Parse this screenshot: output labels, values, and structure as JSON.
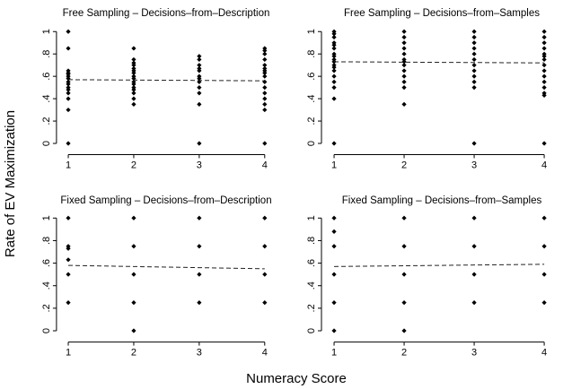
{
  "axis_labels": {
    "y": "Rate of EV Maximization",
    "x": "Numeracy Score"
  },
  "chart_data": [
    {
      "type": "scatter",
      "title": "Free Sampling – Decisions–from–Description",
      "color": "#000000",
      "x": [
        1,
        1,
        1,
        1,
        1,
        1,
        1,
        1,
        1,
        1,
        1,
        1,
        1,
        1,
        1,
        2,
        2,
        2,
        2,
        2,
        2,
        2,
        2,
        2,
        2,
        2,
        2,
        2,
        2,
        2,
        2,
        3,
        3,
        3,
        3,
        3,
        3,
        3,
        3,
        3,
        3,
        3,
        3,
        4,
        4,
        4,
        4,
        4,
        4,
        4,
        4,
        4,
        4,
        4,
        4,
        4,
        4,
        4,
        4
      ],
      "values": [
        1,
        0.85,
        0.65,
        0.63,
        0.62,
        0.6,
        0.58,
        0.55,
        0.53,
        0.5,
        0.48,
        0.45,
        0.4,
        0.3,
        0,
        0.85,
        0.75,
        0.72,
        0.7,
        0.67,
        0.65,
        0.63,
        0.6,
        0.58,
        0.55,
        0.53,
        0.5,
        0.48,
        0.45,
        0.4,
        0.35,
        0.78,
        0.75,
        0.7,
        0.67,
        0.65,
        0.6,
        0.58,
        0.55,
        0.5,
        0.45,
        0.35,
        0,
        0.85,
        0.83,
        0.8,
        0.75,
        0.7,
        0.67,
        0.65,
        0.63,
        0.6,
        0.55,
        0.5,
        0.45,
        0.4,
        0.35,
        0.3,
        0
      ],
      "fit": {
        "x": [
          1,
          4
        ],
        "values": [
          0.57,
          0.56
        ]
      },
      "xlim": [
        0.82,
        4.14
      ],
      "ylim": [
        -0.1,
        1.05
      ],
      "xticks": [
        1,
        2,
        3,
        4
      ],
      "yticks": [
        0,
        {
          "value": 0.2,
          "label": ".2"
        },
        {
          "value": 0.4,
          "label": ".4"
        },
        {
          "value": 0.6,
          "label": ".6"
        },
        {
          "value": 0.8,
          "label": ".8"
        },
        1
      ]
    },
    {
      "type": "scatter",
      "title": "Free Sampling – Decisions–from–Samples",
      "color": "#000000",
      "x": [
        1,
        1,
        1,
        1,
        1,
        1,
        1,
        1,
        1,
        1,
        1,
        1,
        1,
        1,
        1,
        1,
        1,
        1,
        2,
        2,
        2,
        2,
        2,
        2,
        2,
        2,
        2,
        2,
        2,
        2,
        2,
        3,
        3,
        3,
        3,
        3,
        3,
        3,
        3,
        3,
        3,
        3,
        3,
        4,
        4,
        4,
        4,
        4,
        4,
        4,
        4,
        4,
        4,
        4,
        4,
        4,
        4,
        4
      ],
      "values": [
        1,
        0.98,
        0.95,
        0.9,
        0.88,
        0.85,
        0.8,
        0.78,
        0.75,
        0.73,
        0.7,
        0.68,
        0.65,
        0.6,
        0.55,
        0.5,
        0.4,
        0,
        1,
        0.95,
        0.9,
        0.85,
        0.8,
        0.75,
        0.73,
        0.7,
        0.65,
        0.6,
        0.55,
        0.5,
        0.35,
        1,
        0.95,
        0.9,
        0.85,
        0.8,
        0.75,
        0.7,
        0.65,
        0.6,
        0.55,
        0.5,
        0,
        1,
        0.95,
        0.9,
        0.85,
        0.8,
        0.78,
        0.75,
        0.7,
        0.65,
        0.6,
        0.55,
        0.5,
        0.45,
        0.43,
        0
      ],
      "fit": {
        "x": [
          1,
          4
        ],
        "values": [
          0.73,
          0.72
        ]
      },
      "xlim": [
        0.82,
        4.14
      ],
      "ylim": [
        -0.1,
        1.05
      ],
      "xticks": [
        1,
        2,
        3,
        4
      ],
      "yticks": [
        0,
        {
          "value": 0.2,
          "label": ".2"
        },
        {
          "value": 0.4,
          "label": ".4"
        },
        {
          "value": 0.6,
          "label": ".6"
        },
        {
          "value": 0.8,
          "label": ".8"
        },
        1
      ]
    },
    {
      "type": "scatter",
      "title": "Fixed Sampling – Decisions–from–Description",
      "color": "#000000",
      "x": [
        1,
        1,
        1,
        1,
        1,
        1,
        2,
        2,
        2,
        2,
        2,
        3,
        3,
        3,
        3,
        4,
        4,
        4,
        4
      ],
      "values": [
        1,
        0.75,
        0.73,
        0.63,
        0.5,
        0.25,
        1,
        0.75,
        0.5,
        0.25,
        0,
        1,
        0.75,
        0.5,
        0.25,
        1,
        0.75,
        0.5,
        0.25
      ],
      "fit": {
        "x": [
          1,
          4
        ],
        "values": [
          0.58,
          0.55
        ]
      },
      "xlim": [
        0.82,
        4.14
      ],
      "ylim": [
        -0.1,
        1.05
      ],
      "xticks": [
        1,
        2,
        3,
        4
      ],
      "yticks": [
        0,
        {
          "value": 0.2,
          "label": ".2"
        },
        {
          "value": 0.4,
          "label": ".4"
        },
        {
          "value": 0.6,
          "label": ".6"
        },
        {
          "value": 0.8,
          "label": ".8"
        },
        1
      ]
    },
    {
      "type": "scatter",
      "title": "Fixed Sampling – Decisions–from–Samples",
      "color": "#000000",
      "x": [
        1,
        1,
        1,
        1,
        1,
        1,
        2,
        2,
        2,
        2,
        2,
        3,
        3,
        3,
        3,
        4,
        4,
        4,
        4
      ],
      "values": [
        1,
        0.88,
        0.75,
        0.5,
        0.25,
        0,
        1,
        0.75,
        0.5,
        0.25,
        0,
        1,
        0.75,
        0.5,
        0.25,
        1,
        0.75,
        0.5,
        0.25
      ],
      "fit": {
        "x": [
          1,
          4
        ],
        "values": [
          0.57,
          0.59
        ]
      },
      "xlim": [
        0.82,
        4.14
      ],
      "ylim": [
        -0.1,
        1.05
      ],
      "xticks": [
        1,
        2,
        3,
        4
      ],
      "yticks": [
        0,
        {
          "value": 0.2,
          "label": ".2"
        },
        {
          "value": 0.4,
          "label": ".4"
        },
        {
          "value": 0.6,
          "label": ".6"
        },
        {
          "value": 0.8,
          "label": ".8"
        },
        1
      ]
    }
  ]
}
